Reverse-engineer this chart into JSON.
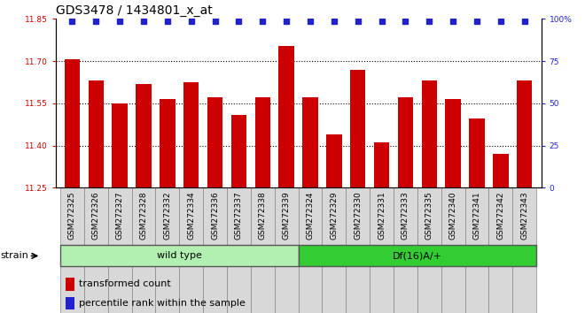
{
  "title": "GDS3478 / 1434801_x_at",
  "categories": [
    "GSM272325",
    "GSM272326",
    "GSM272327",
    "GSM272328",
    "GSM272332",
    "GSM272334",
    "GSM272336",
    "GSM272337",
    "GSM272338",
    "GSM272339",
    "GSM272324",
    "GSM272329",
    "GSM272330",
    "GSM272331",
    "GSM272333",
    "GSM272335",
    "GSM272340",
    "GSM272341",
    "GSM272342",
    "GSM272343"
  ],
  "bar_values": [
    11.705,
    11.63,
    11.55,
    11.62,
    11.565,
    11.625,
    11.57,
    11.51,
    11.57,
    11.755,
    11.57,
    11.44,
    11.67,
    11.41,
    11.57,
    11.63,
    11.565,
    11.495,
    11.37,
    11.63
  ],
  "group1_label": "wild type",
  "group2_label": "Df(16)A/+",
  "group1_count": 10,
  "group2_count": 10,
  "ylim_left": [
    11.25,
    11.85
  ],
  "ylim_right": [
    0,
    100
  ],
  "yticks_left": [
    11.25,
    11.4,
    11.55,
    11.7,
    11.85
  ],
  "yticks_right": [
    0,
    25,
    50,
    75,
    100
  ],
  "hlines": [
    11.7,
    11.55,
    11.4
  ],
  "bar_color": "#cc0000",
  "dot_color": "#2222cc",
  "group1_bg": "#b2f0b2",
  "group2_bg": "#33cc33",
  "tick_bg": "#d8d8d8",
  "strain_label": "strain",
  "legend_bar_label": "transformed count",
  "legend_dot_label": "percentile rank within the sample",
  "title_fontsize": 10,
  "tick_fontsize": 6.5,
  "label_fontsize": 8,
  "right_tick_color": "#2222cc",
  "left_tick_color": "#cc0000"
}
